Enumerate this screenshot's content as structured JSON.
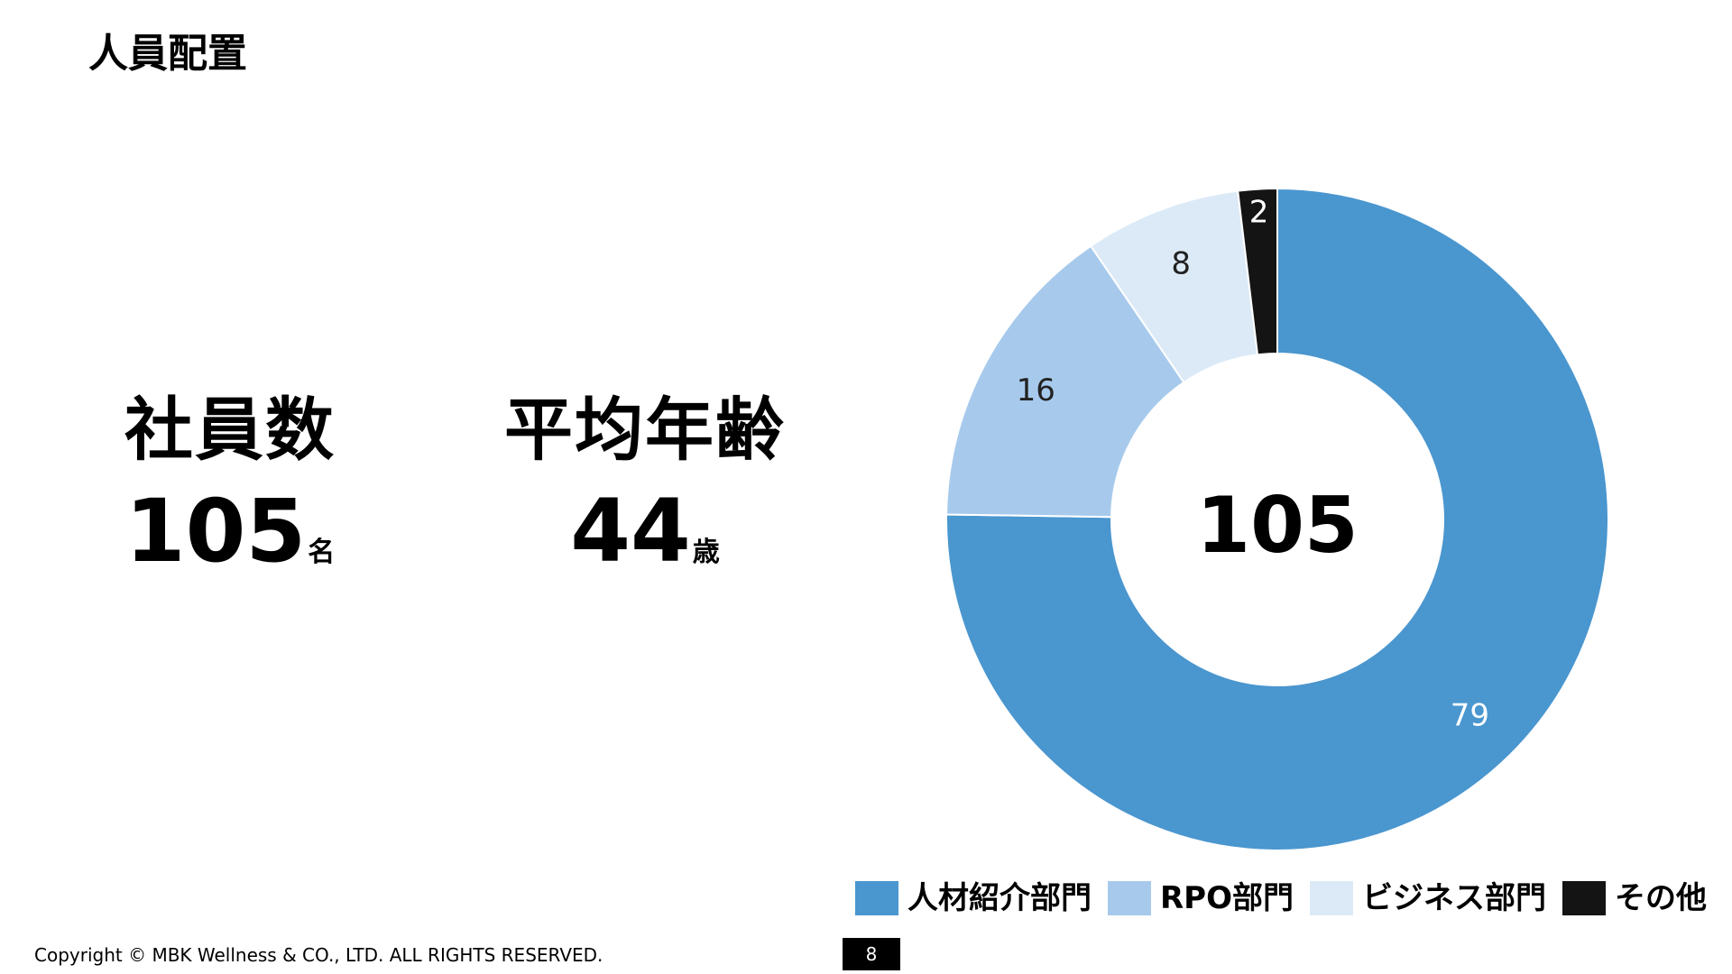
{
  "title": "人員配置",
  "stats": {
    "employees": {
      "label": "社員数",
      "value": "105",
      "unit": "名"
    },
    "age": {
      "label": "平均年齢",
      "value": "44",
      "unit": "歳"
    }
  },
  "chart_data": {
    "type": "pie",
    "variant": "donut",
    "center_label": "105",
    "categories": [
      "人材紹介部門",
      "RPO部門",
      "ビジネス部門",
      "その他"
    ],
    "values": [
      79,
      16,
      8,
      2
    ],
    "data_labels": [
      "79",
      "16",
      "8",
      "2"
    ],
    "colors": [
      "#4A96CF",
      "#A7CAEC",
      "#DCEAF7",
      "#141414"
    ],
    "label_colors": [
      "#ffffff",
      "#222222",
      "#222222",
      "#ffffff"
    ],
    "legend_position": "bottom",
    "start": "top",
    "direction": "clockwise"
  },
  "footer": {
    "copyright": "Copyright © MBK Wellness & CO., LTD. ALL RIGHTS RESERVED.",
    "page_number": "8"
  }
}
